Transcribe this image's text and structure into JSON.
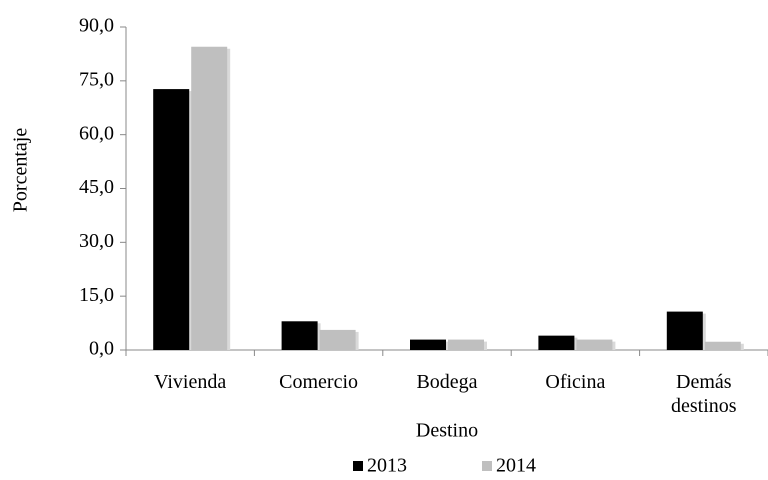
{
  "chart_data": {
    "type": "bar",
    "y_label": "Porcentaje",
    "x_label": "Destino",
    "categories": [
      "Vivienda",
      "Comercio",
      "Bodega",
      "Oficina",
      "Demás destinos"
    ],
    "series": [
      {
        "name": "2013",
        "color": "#000000",
        "values": [
          72.7,
          8.0,
          2.9,
          4.0,
          10.7
        ]
      },
      {
        "name": "2014",
        "color": "#bfbfbf",
        "values": [
          84.5,
          5.6,
          2.9,
          2.9,
          2.3
        ]
      }
    ],
    "ylim": [
      0,
      90
    ],
    "yticks": [
      {
        "value": 0,
        "label": "0,0"
      },
      {
        "value": 15,
        "label": "15,0"
      },
      {
        "value": 30,
        "label": "30,0"
      },
      {
        "value": 45,
        "label": "45,0"
      },
      {
        "value": 60,
        "label": "60,0"
      },
      {
        "value": 75,
        "label": "75,0"
      },
      {
        "value": 90,
        "label": "90,0"
      }
    ],
    "grid": false,
    "legend": "bottom"
  }
}
